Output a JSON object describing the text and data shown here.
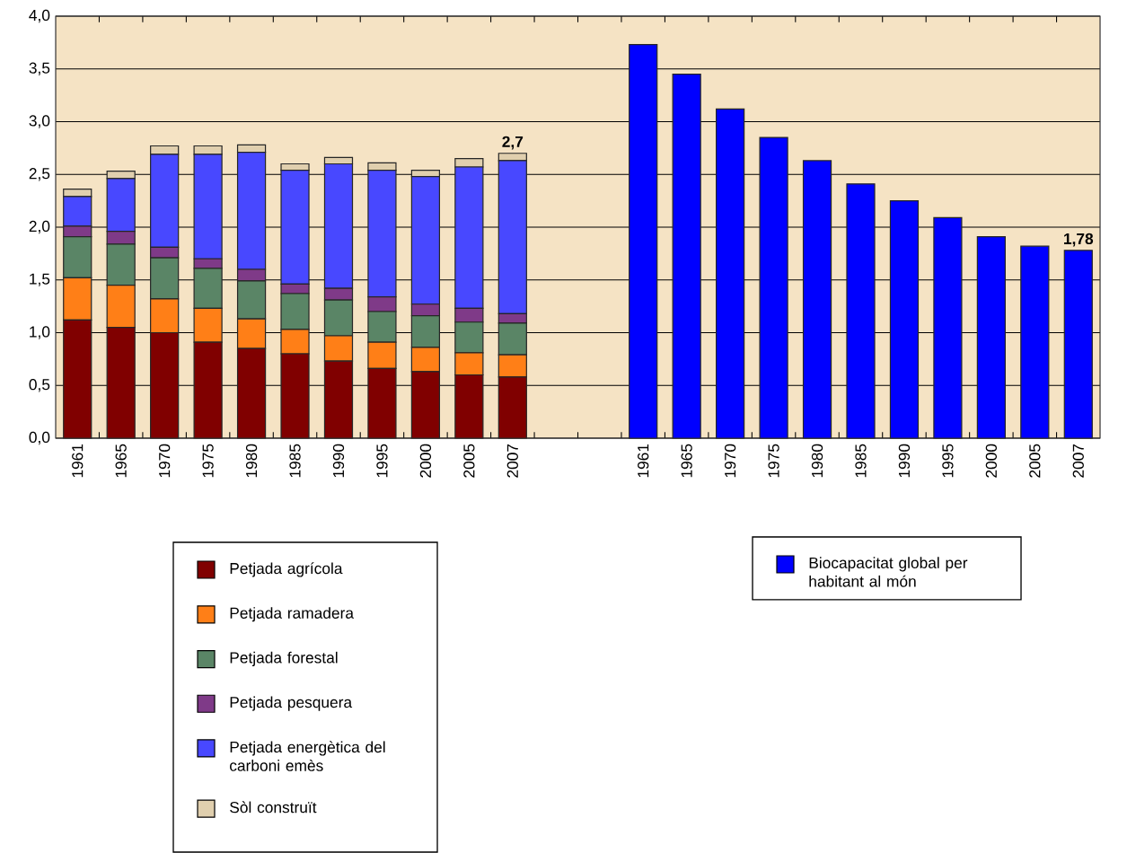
{
  "chart_data": {
    "type": "bar",
    "stacked": true,
    "categories": [
      "1961",
      "1965",
      "1970",
      "1975",
      "1980",
      "1985",
      "1990",
      "1995",
      "2000",
      "2005",
      "2007",
      null,
      null,
      "1961",
      "1965",
      "1970",
      "1975",
      "1980",
      "1985",
      "1990",
      "1995",
      "2000",
      "2005",
      "2007"
    ],
    "series": [
      {
        "name": "Petjada agrícola",
        "color": "#800000",
        "values": [
          1.12,
          1.05,
          1.0,
          0.91,
          0.85,
          0.8,
          0.73,
          0.66,
          0.63,
          0.6,
          0.58,
          null,
          null,
          null,
          null,
          null,
          null,
          null,
          null,
          null,
          null,
          null,
          null,
          null
        ]
      },
      {
        "name": "Petjada ramadera",
        "color": "#ff7f17",
        "values": [
          0.4,
          0.4,
          0.32,
          0.32,
          0.28,
          0.23,
          0.24,
          0.25,
          0.23,
          0.21,
          0.21,
          null,
          null,
          null,
          null,
          null,
          null,
          null,
          null,
          null,
          null,
          null,
          null,
          null
        ]
      },
      {
        "name": "Petjada forestal",
        "color": "#5a8566",
        "values": [
          0.39,
          0.39,
          0.39,
          0.38,
          0.36,
          0.34,
          0.34,
          0.29,
          0.3,
          0.29,
          0.3,
          null,
          null,
          null,
          null,
          null,
          null,
          null,
          null,
          null,
          null,
          null,
          null,
          null
        ]
      },
      {
        "name": "Petjada pesquera",
        "color": "#7f3a88",
        "values": [
          0.1,
          0.12,
          0.1,
          0.09,
          0.11,
          0.09,
          0.11,
          0.14,
          0.11,
          0.13,
          0.09,
          null,
          null,
          null,
          null,
          null,
          null,
          null,
          null,
          null,
          null,
          null,
          null,
          null
        ]
      },
      {
        "name": "Petjada energètica del carboni emès",
        "color": "#4848ff",
        "values": [
          0.28,
          0.5,
          0.88,
          0.99,
          1.11,
          1.08,
          1.18,
          1.2,
          1.21,
          1.34,
          1.45,
          null,
          null,
          null,
          null,
          null,
          null,
          null,
          null,
          null,
          null,
          null,
          null,
          null
        ]
      },
      {
        "name": "Sòl construït",
        "color": "#e0cfae",
        "values": [
          0.07,
          0.07,
          0.08,
          0.08,
          0.07,
          0.06,
          0.06,
          0.07,
          0.06,
          0.08,
          0.07,
          null,
          null,
          null,
          null,
          null,
          null,
          null,
          null,
          null,
          null,
          null,
          null,
          null
        ]
      },
      {
        "name": "Biocapacitat global per habitant al món",
        "color": "#0000ff",
        "values": [
          null,
          null,
          null,
          null,
          null,
          null,
          null,
          null,
          null,
          null,
          null,
          null,
          null,
          3.73,
          3.45,
          3.12,
          2.85,
          2.63,
          2.41,
          2.25,
          2.09,
          1.91,
          1.82,
          1.78
        ],
        "value_labels": [
          null,
          null,
          null,
          null,
          null,
          null,
          null,
          null,
          null,
          null,
          null,
          null,
          null,
          null,
          null,
          null,
          null,
          null,
          null,
          null,
          null,
          null,
          null,
          "1,78"
        ]
      }
    ],
    "totals": [
      null,
      null,
      null,
      null,
      null,
      null,
      null,
      null,
      null,
      null,
      "2,7",
      null,
      null,
      null,
      null,
      null,
      null,
      null,
      null,
      null,
      null,
      null,
      null,
      null
    ],
    "ylim": [
      0,
      4
    ],
    "yticks": [
      {
        "value": 0,
        "label": "0,0"
      },
      {
        "value": 0.5,
        "label": "0,5"
      },
      {
        "value": 1,
        "label": "1,0"
      },
      {
        "value": 1.5,
        "label": "1,5"
      },
      {
        "value": 2,
        "label": "2,0"
      },
      {
        "value": 2.5,
        "label": "2,5"
      },
      {
        "value": 3,
        "label": "3,0"
      },
      {
        "value": 3.5,
        "label": "3,5"
      },
      {
        "value": 4,
        "label": "4,0"
      }
    ],
    "grid": "y",
    "legend": "bottom"
  }
}
